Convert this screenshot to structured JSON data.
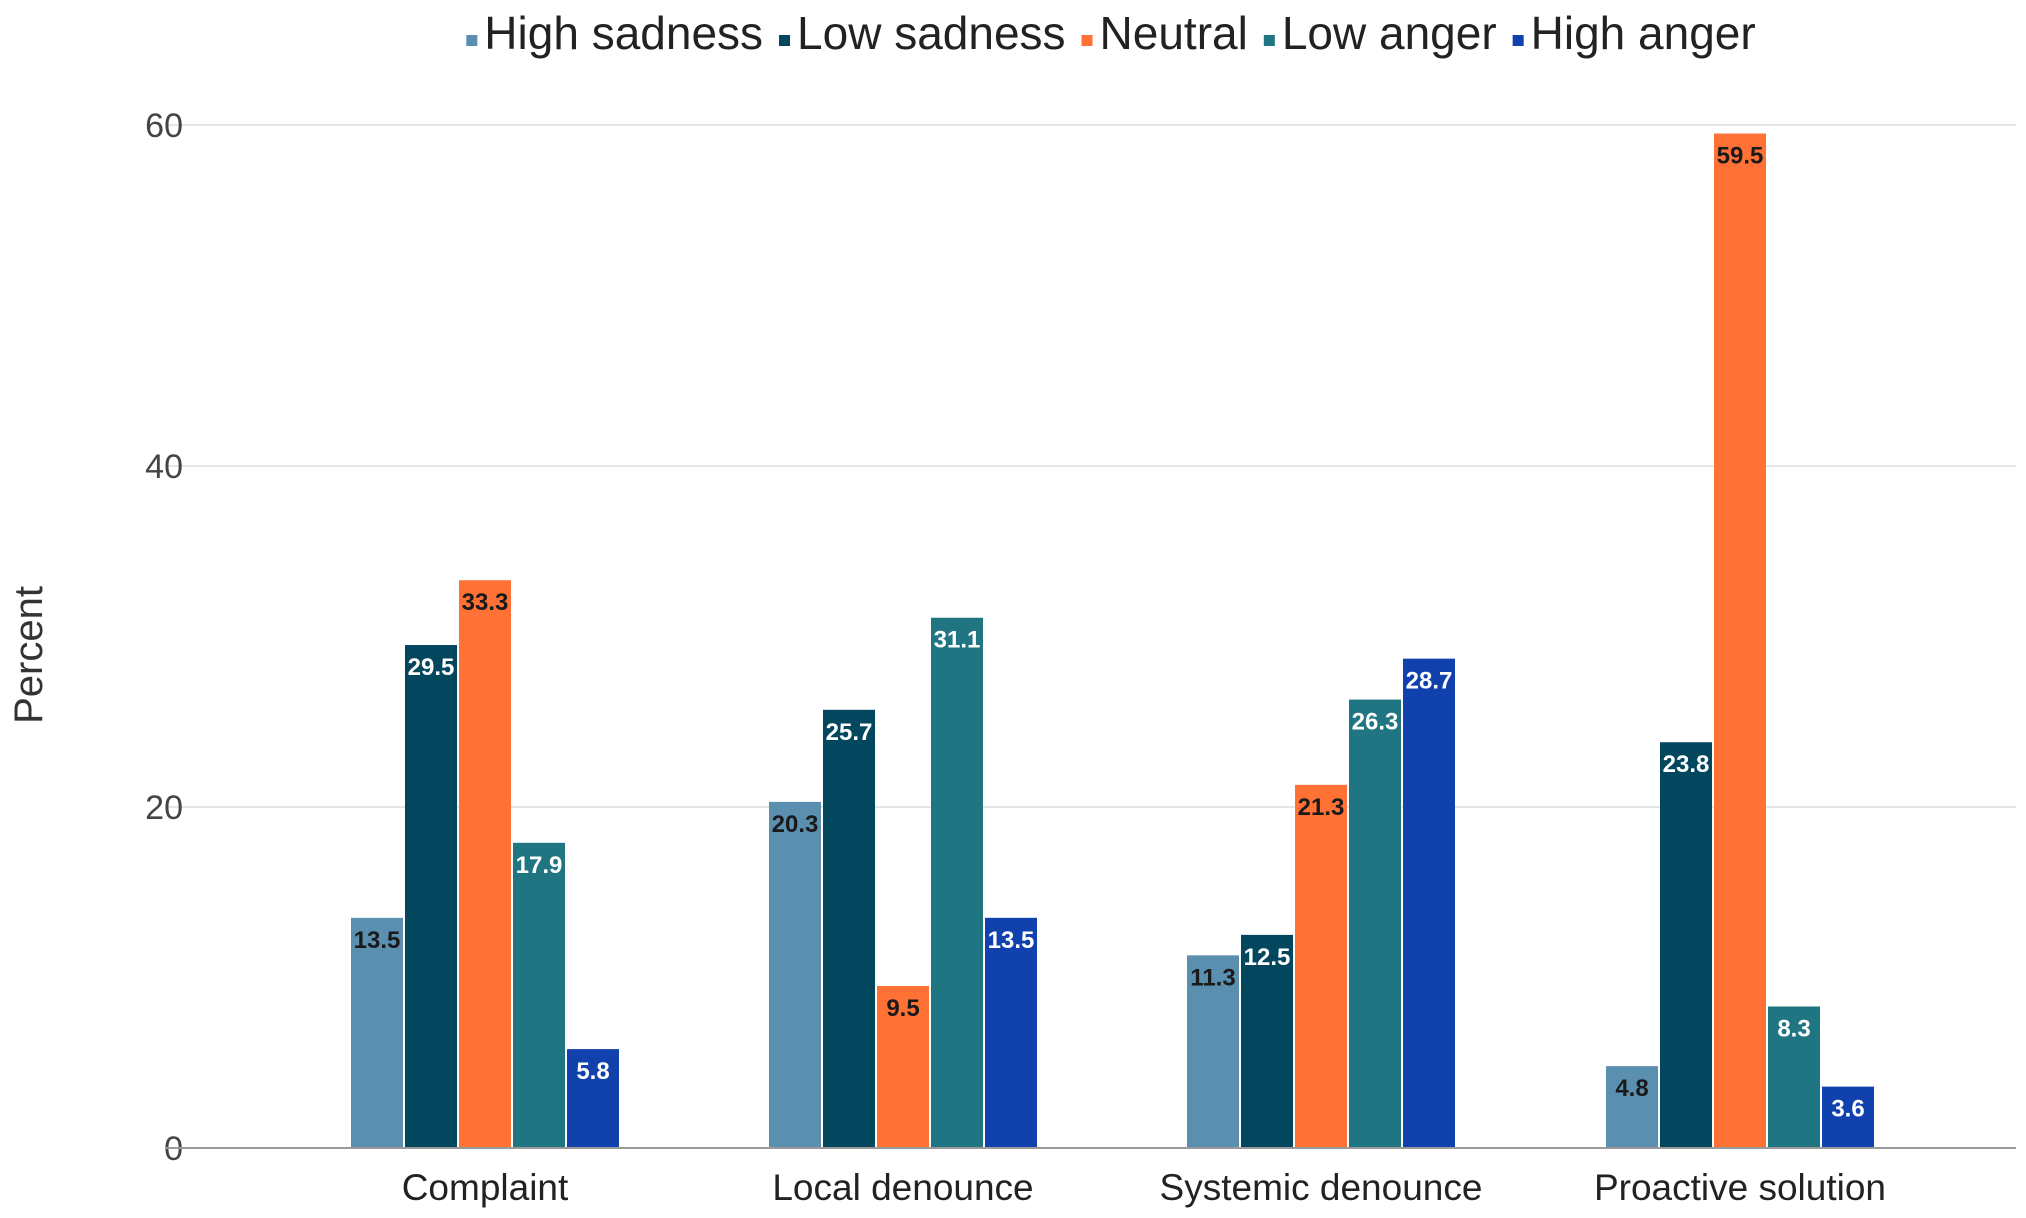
{
  "chart_data": {
    "type": "bar",
    "title": "",
    "xlabel": "",
    "ylabel": "Percent",
    "ylim": [
      0,
      60
    ],
    "yticks": [
      0,
      20,
      40,
      60
    ],
    "grid": true,
    "legend_position": "top",
    "categories": [
      "Complaint",
      "Local denounce",
      "Systemic denounce",
      "Proactive solution"
    ],
    "series": [
      {
        "name": "High sadness",
        "color": "#5b8fb0",
        "label_color": "#1a1a1a",
        "values": [
          13.5,
          20.3,
          11.3,
          4.8
        ]
      },
      {
        "name": "Low sadness",
        "color": "#03475f",
        "label_color": "#ffffff",
        "values": [
          29.5,
          25.7,
          12.5,
          23.8
        ]
      },
      {
        "name": "Neutral",
        "color": "#ff7134",
        "label_color": "#1a1a1a",
        "values": [
          33.3,
          9.5,
          21.3,
          59.5
        ]
      },
      {
        "name": "Low anger",
        "color": "#1f7682",
        "label_color": "#ffffff",
        "values": [
          17.9,
          31.1,
          26.3,
          8.3
        ]
      },
      {
        "name": "High anger",
        "color": "#1141ad",
        "label_color": "#ffffff",
        "values": [
          5.8,
          13.5,
          28.7,
          3.6
        ]
      }
    ]
  }
}
